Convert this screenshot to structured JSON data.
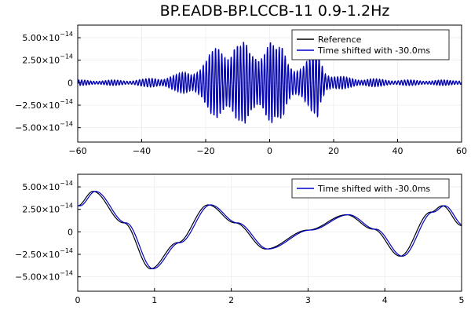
{
  "chart_data": [
    {
      "type": "line",
      "title": "BP.EADB-BP.LCCB-11 0.9-1.2Hz",
      "xlim": [
        -60,
        60
      ],
      "ylim": [
        -6.6e-14,
        6.4e-14
      ],
      "x_ticks": [
        -60,
        -40,
        -20,
        0,
        20,
        40,
        60
      ],
      "y_ticks": [
        5e-14,
        2.5e-14,
        0,
        -2.5e-14,
        -5e-14
      ],
      "x_tick_labels": [
        "−60",
        "−40",
        "−20",
        "0",
        "20",
        "40",
        "60"
      ],
      "y_tick_labels": [
        {
          "mantissa": "5.00×10",
          "exponent": "−14"
        },
        {
          "mantissa": "2.50×10",
          "exponent": "−14"
        },
        {
          "mantissa": "0",
          "exponent": ""
        },
        {
          "mantissa": "−2.50×10",
          "exponent": "−14"
        },
        {
          "mantissa": "−5.00×10",
          "exponent": "−14"
        }
      ],
      "grid": true,
      "legend_position": "top-right",
      "series": [
        {
          "name": "Reference",
          "color": "#000000",
          "x": [
            -60,
            -55,
            -50,
            -45,
            -40,
            -35,
            -30,
            -25,
            -22,
            -20,
            -18,
            -16,
            -14,
            -12,
            -11,
            -10,
            -9,
            -8,
            -6,
            -4,
            -2,
            -1,
            0,
            2,
            4,
            6,
            8,
            10,
            12,
            14,
            15,
            16,
            18,
            20,
            22,
            25,
            30,
            35,
            40,
            45,
            50,
            55,
            60
          ],
          "envelope": [
            3e-15,
            3e-15,
            3e-15,
            3e-15,
            4e-15,
            6e-15,
            9e-15,
            1.4e-14,
            2.3e-14,
            2.8e-14,
            3.5e-14,
            4.5e-14,
            5e-14,
            5.4e-14,
            5.8e-14,
            5.2e-14,
            4.4e-14,
            4.6e-14,
            3.6e-14,
            4.2e-14,
            5.6e-14,
            6.2e-14,
            5.8e-14,
            3.8e-14,
            4.2e-14,
            3e-14,
            2.4e-14,
            2.2e-14,
            2.6e-14,
            3.6e-14,
            4.6e-14,
            3.2e-14,
            1.5e-14,
            9e-15,
            7e-15,
            6e-15,
            5e-15,
            4e-15,
            3.5e-15,
            3e-15,
            3e-15,
            3e-15,
            3.5e-15
          ],
          "frequency_hz": 1.05
        },
        {
          "name": "Time shifted with -30.0ms",
          "color": "#0000cc",
          "time_shift_s": -0.03
        }
      ]
    },
    {
      "type": "line",
      "title": "",
      "xlim": [
        0,
        5
      ],
      "ylim": [
        -6.6e-14,
        6.4e-14
      ],
      "x_ticks": [
        0,
        1,
        2,
        3,
        4,
        5
      ],
      "y_ticks": [
        5e-14,
        2.5e-14,
        0,
        -2.5e-14,
        -5e-14
      ],
      "x_tick_labels": [
        "0",
        "1",
        "2",
        "3",
        "4",
        "5"
      ],
      "y_tick_labels": [
        {
          "mantissa": "5.00×10",
          "exponent": "−14"
        },
        {
          "mantissa": "2.50×10",
          "exponent": "−14"
        },
        {
          "mantissa": "0",
          "exponent": ""
        },
        {
          "mantissa": "−2.50×10",
          "exponent": "−14"
        },
        {
          "mantissa": "−5.00×10",
          "exponent": "−14"
        }
      ],
      "grid": true,
      "legend_position": "top-right",
      "series": [
        {
          "name": "Reference",
          "color": "#000000",
          "x": [
            0,
            0.2,
            0.6,
            0.95,
            1.3,
            1.7,
            2.05,
            2.45,
            3.0,
            3.5,
            3.85,
            4.2,
            4.6,
            4.75,
            5.0
          ],
          "y": [
            2.9e-14,
            4.5e-14,
            1e-14,
            -4.1e-14,
            -1.2e-14,
            3e-14,
            1e-14,
            -1.9e-14,
            2e-15,
            1.9e-14,
            3e-15,
            -2.7e-14,
            2.2e-14,
            2.9e-14,
            7e-15
          ]
        },
        {
          "name": "Time shifted with -30.0ms",
          "color": "#0000cc",
          "time_shift_s": -0.03
        }
      ],
      "legend_entries": [
        "Time shifted with -30.0ms"
      ]
    }
  ]
}
